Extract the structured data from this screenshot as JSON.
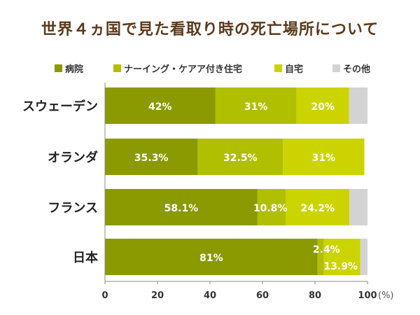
{
  "title": "世界４ヵ国で見た看取り時の死亡場所について",
  "colors": {
    "hospital": "#8a9a00",
    "nursing": "#b0bf00",
    "home": "#ccd400",
    "other": "#d3d3d3"
  },
  "chart_data": {
    "type": "bar",
    "orientation": "horizontal",
    "stacked": true,
    "categories": [
      "スウェーデン",
      "オランダ",
      "フランス",
      "日本"
    ],
    "series": [
      {
        "name": "病院",
        "values": [
          42,
          35.3,
          58.1,
          81
        ],
        "labels": [
          "42%",
          "35.3%",
          "58.1%",
          "81%"
        ]
      },
      {
        "name": "ナーイング・ケアア付き住宅",
        "values": [
          31,
          32.5,
          10.8,
          2.4
        ],
        "labels": [
          "31%",
          "32.5%",
          "10.8%",
          "2.4%"
        ]
      },
      {
        "name": "自宅",
        "values": [
          20,
          31,
          24.2,
          13.9
        ],
        "labels": [
          "20%",
          "31%",
          "24.2%",
          "13.9%"
        ]
      },
      {
        "name": "その他",
        "values": [
          7,
          0,
          6.9,
          2.7
        ],
        "labels": [
          "",
          "",
          "",
          ""
        ]
      }
    ],
    "xticks": [
      "0",
      "20",
      "40",
      "60",
      "80",
      "100"
    ],
    "xunit": "(%)",
    "xlim": [
      0,
      100
    ],
    "grid": false,
    "legend": "top"
  }
}
